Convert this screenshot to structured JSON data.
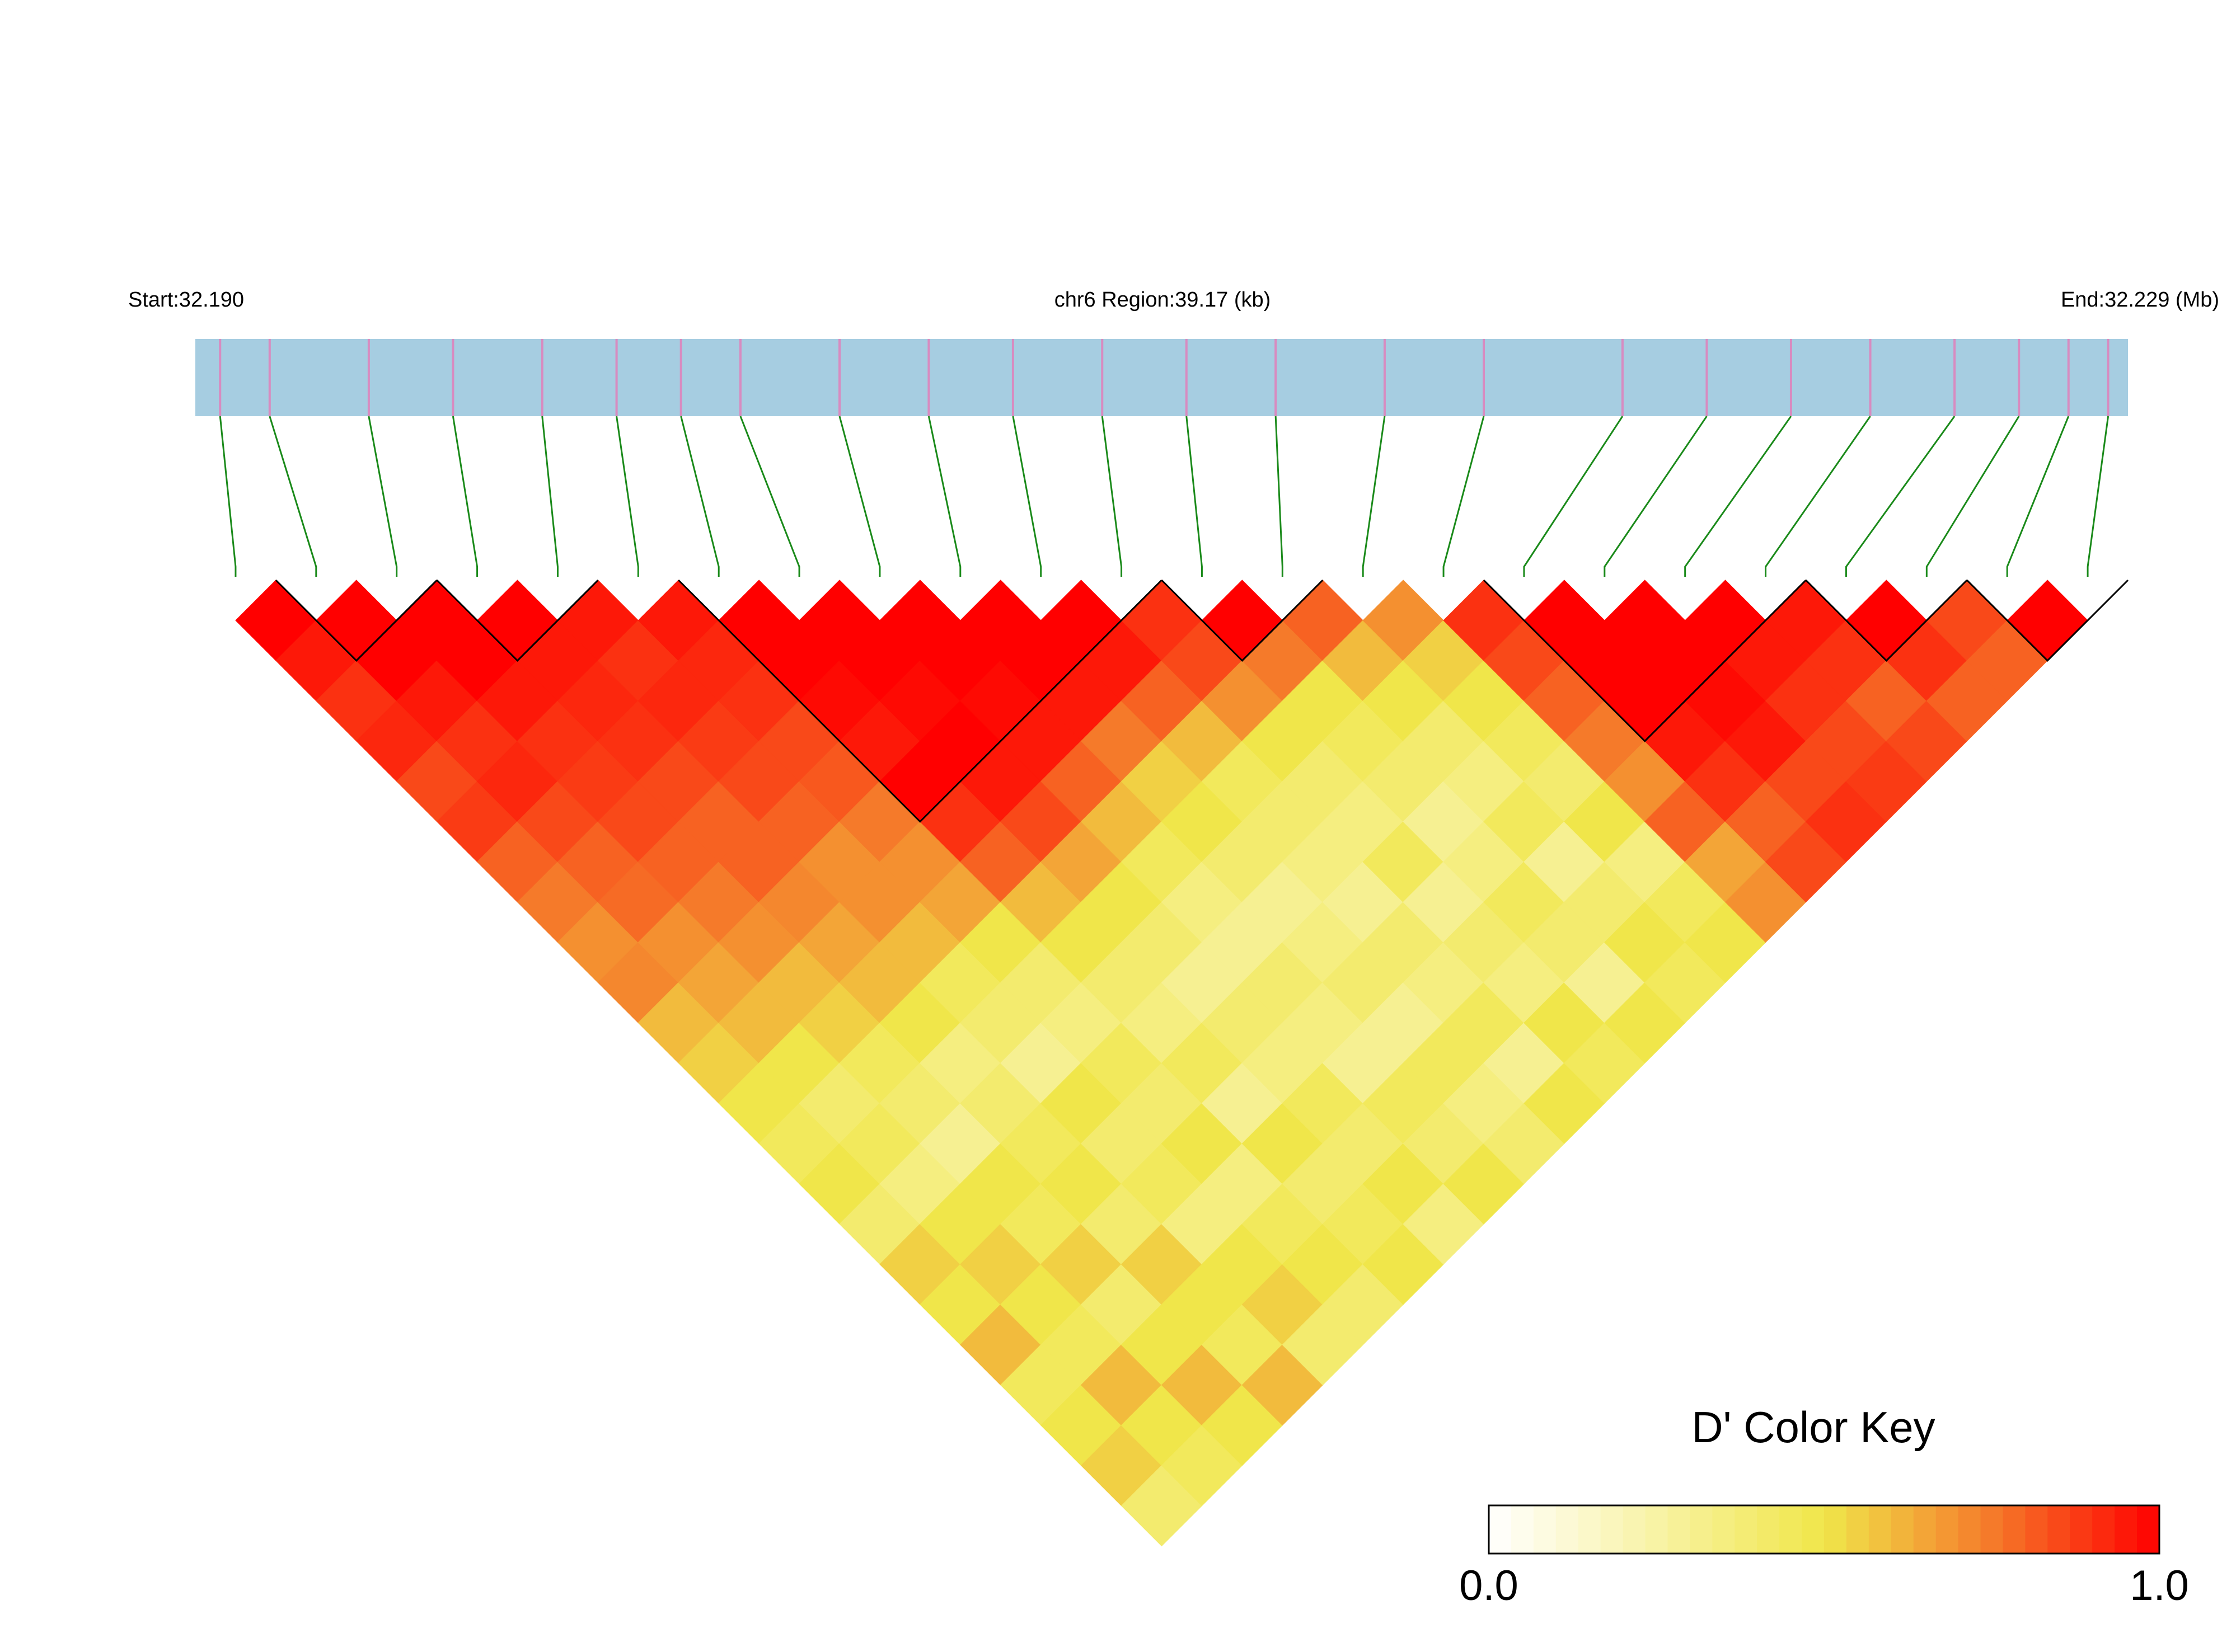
{
  "chart_data": {
    "type": "ld-heatmap",
    "title": "chr6 Region:39.17 (kb)",
    "start_label": "Start:32.190",
    "end_label": "End:32.229 (Mb)",
    "xlim": [
      32.19,
      32.229
    ],
    "positions": [
      32.1905,
      32.1915,
      32.1935,
      32.1952,
      32.197,
      32.1985,
      32.1998,
      32.201,
      32.203,
      32.2048,
      32.2065,
      32.2083,
      32.21,
      32.2118,
      32.214,
      32.216,
      32.2188,
      32.2205,
      32.2222,
      32.2238,
      32.2255,
      32.2268,
      32.2278,
      32.2286
    ],
    "ld": [
      [
        1,
        0.95,
        0.9,
        0.92,
        0.85,
        0.88,
        0.8,
        0.75,
        0.7,
        0.72,
        0.6,
        0.55,
        0.5,
        0.45,
        0.5,
        0.4,
        0.55,
        0.5,
        0.6,
        0.45,
        0.5,
        0.55,
        0.4
      ],
      [
        1,
        1,
        0.95,
        0.9,
        0.92,
        0.85,
        0.8,
        0.78,
        0.7,
        0.65,
        0.6,
        0.5,
        0.4,
        0.45,
        0.35,
        0.5,
        0.55,
        0.5,
        0.45,
        0.6,
        0.5,
        0.45
      ],
      [
        1,
        1,
        0.95,
        0.9,
        0.88,
        0.85,
        0.8,
        0.75,
        0.7,
        0.6,
        0.55,
        0.45,
        0.4,
        0.3,
        0.5,
        0.45,
        0.55,
        0.4,
        0.5,
        0.6,
        0.5
      ],
      [
        1,
        0.95,
        0.92,
        0.9,
        0.85,
        0.8,
        0.8,
        0.72,
        0.65,
        0.6,
        0.5,
        0.35,
        0.4,
        0.45,
        0.5,
        0.4,
        0.55,
        0.5,
        0.45,
        0.6
      ],
      [
        0.95,
        0.9,
        0.92,
        0.88,
        0.85,
        0.8,
        0.7,
        0.7,
        0.6,
        0.45,
        0.4,
        0.3,
        0.5,
        0.4,
        0.45,
        0.35,
        0.5,
        0.55,
        0.4
      ],
      [
        0.95,
        0.92,
        0.9,
        0.85,
        0.82,
        0.75,
        0.7,
        0.65,
        0.5,
        0.4,
        0.35,
        0.45,
        0.4,
        0.5,
        0.35,
        0.45,
        0.5,
        0.4
      ],
      [
        1,
        1,
        0.98,
        0.95,
        1,
        0.9,
        0.8,
        0.6,
        0.5,
        0.4,
        0.35,
        0.45,
        0.3,
        0.5,
        0.4,
        0.45,
        0.5
      ],
      [
        1,
        1,
        0.98,
        1,
        0.95,
        0.85,
        0.65,
        0.5,
        0.4,
        0.3,
        0.4,
        0.35,
        0.45,
        0.4,
        0.5,
        0.35
      ],
      [
        1,
        1,
        0.98,
        0.95,
        0.8,
        0.6,
        0.45,
        0.35,
        0.3,
        0.4,
        0.35,
        0.3,
        0.45,
        0.4,
        0.5
      ],
      [
        1,
        1,
        0.95,
        0.75,
        0.55,
        0.5,
        0.4,
        0.3,
        0.35,
        0.4,
        0.3,
        0.45,
        0.35,
        0.4
      ],
      [
        1,
        0.95,
        0.8,
        0.6,
        0.45,
        0.4,
        0.35,
        0.3,
        0.4,
        0.35,
        0.45,
        0.3,
        0.5
      ],
      [
        0.9,
        0.85,
        0.7,
        0.5,
        0.4,
        0.35,
        0.45,
        0.3,
        0.4,
        0.35,
        0.5,
        0.45
      ],
      [
        1,
        0.75,
        0.5,
        0.45,
        0.4,
        0.3,
        0.35,
        0.45,
        0.4,
        0.3,
        0.5
      ],
      [
        0.8,
        0.6,
        0.5,
        0.4,
        0.35,
        0.45,
        0.3,
        0.4,
        0.5,
        0.45
      ],
      [
        0.7,
        0.55,
        0.5,
        0.45,
        0.4,
        0.5,
        0.35,
        0.45,
        0.5
      ],
      [
        0.9,
        0.85,
        0.8,
        0.75,
        0.7,
        0.8,
        0.65,
        0.7
      ],
      [
        1,
        1,
        1,
        0.95,
        0.9,
        0.8,
        0.85
      ],
      [
        1,
        1,
        0.98,
        0.95,
        0.85,
        0.9
      ],
      [
        1,
        0.95,
        0.9,
        0.85,
        0.88
      ],
      [
        0.95,
        0.9,
        0.8,
        0.85
      ],
      [
        1,
        0.9,
        0.8
      ],
      [
        0.85,
        0.8
      ],
      [
        1
      ]
    ],
    "blocks": [
      [
        1,
        2
      ],
      [
        3,
        4
      ],
      [
        6,
        11
      ],
      [
        12,
        13
      ],
      [
        16,
        19
      ],
      [
        20,
        21
      ],
      [
        22,
        23
      ]
    ],
    "colorscale": [
      [
        0,
        "#ffffff"
      ],
      [
        0.5,
        "#f0e64a"
      ],
      [
        0.75,
        "#f57a2a"
      ],
      [
        1,
        "#ff0000"
      ]
    ],
    "gene_color": "#a6cde1",
    "snp_mark_color": "#d88bc0",
    "link_color": "#1a8a1a",
    "key_title": "D' Color Key",
    "key_ticks": [
      {
        "value": 0,
        "label": "0.0"
      },
      {
        "value": 1,
        "label": "1.0"
      }
    ]
  }
}
